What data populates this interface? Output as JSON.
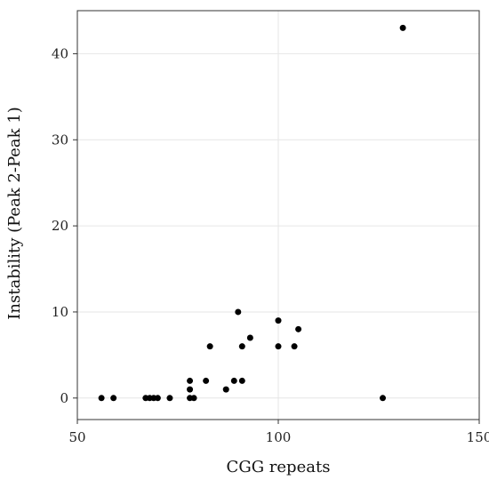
{
  "chart_data": {
    "type": "scatter",
    "title": "",
    "xlabel": "CGG repeats",
    "ylabel": "Instability (Peak 2-Peak 1)",
    "xlim": [
      50,
      150
    ],
    "ylim": [
      -2.5,
      45
    ],
    "xticks": [
      50,
      100,
      150
    ],
    "yticks": [
      0,
      10,
      20,
      30,
      40
    ],
    "grid": true,
    "legend": "none",
    "series": [
      {
        "points": [
          {
            "x": 56,
            "y": 0
          },
          {
            "x": 59,
            "y": 0
          },
          {
            "x": 67,
            "y": 0
          },
          {
            "x": 68,
            "y": 0
          },
          {
            "x": 69,
            "y": 0
          },
          {
            "x": 70,
            "y": 0
          },
          {
            "x": 73,
            "y": 0
          },
          {
            "x": 78,
            "y": 0
          },
          {
            "x": 79,
            "y": 0
          },
          {
            "x": 78,
            "y": 1
          },
          {
            "x": 78,
            "y": 2
          },
          {
            "x": 82,
            "y": 2
          },
          {
            "x": 83,
            "y": 6
          },
          {
            "x": 87,
            "y": 1
          },
          {
            "x": 89,
            "y": 2
          },
          {
            "x": 90,
            "y": 10
          },
          {
            "x": 91,
            "y": 2
          },
          {
            "x": 91,
            "y": 6
          },
          {
            "x": 93,
            "y": 7
          },
          {
            "x": 100,
            "y": 9
          },
          {
            "x": 100,
            "y": 6
          },
          {
            "x": 104,
            "y": 6
          },
          {
            "x": 105,
            "y": 8
          },
          {
            "x": 126,
            "y": 0
          },
          {
            "x": 131,
            "y": 43
          }
        ]
      }
    ]
  }
}
